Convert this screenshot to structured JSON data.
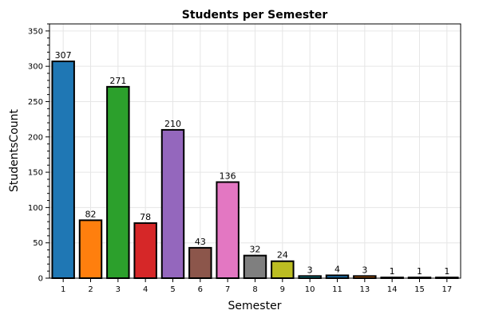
{
  "chart_data": {
    "type": "bar",
    "title": "Students per Semester",
    "xlabel": "Semester",
    "ylabel": "StudentsCount",
    "categories": [
      "1",
      "2",
      "3",
      "4",
      "5",
      "6",
      "7",
      "8",
      "9",
      "10",
      "11",
      "13",
      "14",
      "15",
      "17"
    ],
    "values": [
      307,
      82,
      271,
      78,
      210,
      43,
      136,
      32,
      24,
      3,
      4,
      3,
      1,
      1,
      1
    ],
    "ylim": [
      0,
      360
    ],
    "yticks": [
      0,
      50,
      100,
      150,
      200,
      250,
      300,
      350
    ],
    "grid": true,
    "colors": [
      "#1f77b4",
      "#ff7f0e",
      "#2ca02c",
      "#d62728",
      "#9467bd",
      "#8c564b",
      "#e377c2",
      "#7f7f7f",
      "#bcbd22",
      "#17becf",
      "#1f77b4",
      "#ff7f0e",
      "#2ca02c",
      "#d62728",
      "#9467bd"
    ]
  }
}
